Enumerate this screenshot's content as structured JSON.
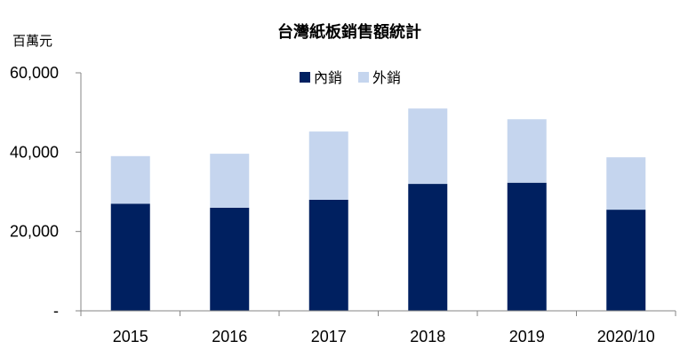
{
  "chart_data": {
    "type": "bar",
    "stacked": true,
    "title": "台灣紙板銷售額統計",
    "ylabel": "百萬元",
    "xlabel": "",
    "categories": [
      "2015",
      "2016",
      "2017",
      "2018",
      "2019",
      "2020/10"
    ],
    "series": [
      {
        "name": "內銷",
        "color": "#002060",
        "values": [
          27000,
          26000,
          28000,
          32000,
          32300,
          25500
        ]
      },
      {
        "name": "外銷",
        "color": "#C5D5EE",
        "values": [
          12000,
          13600,
          17200,
          19000,
          16000,
          13200
        ]
      }
    ],
    "ylim": [
      0,
      60000
    ],
    "yticks": [
      {
        "value": 0,
        "label": "-"
      },
      {
        "value": 20000,
        "label": "20,000"
      },
      {
        "value": 40000,
        "label": "40,000"
      },
      {
        "value": 60000,
        "label": "60,000"
      }
    ],
    "grid": false,
    "legend": "top-center"
  }
}
